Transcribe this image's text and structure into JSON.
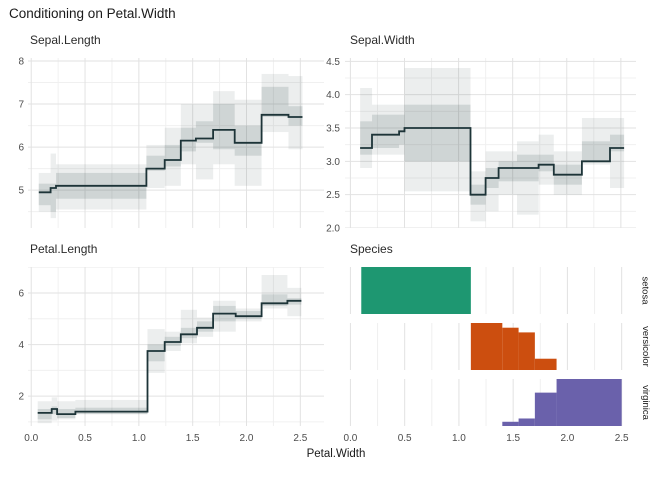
{
  "title": "Conditioning on Petal.Width",
  "x_axis": {
    "title": "Petal.Width",
    "major_ticks": [
      0,
      0.5,
      1.0,
      1.5,
      2.0,
      2.5
    ],
    "tick_labels": [
      "0.0",
      "0.5",
      "1.0",
      "1.5",
      "2.0",
      "2.5"
    ],
    "minor_ticks": [
      0.25,
      0.75,
      1.25,
      1.75,
      2.25
    ]
  },
  "colors": {
    "background": "#ffffff",
    "step_line": "#1d3438",
    "band_fill": "#40585a",
    "grid_major": "#e2e2e2",
    "grid_minor": "#f0f0f0",
    "tick_text": "#4d4d4d",
    "setosa": "#1e9771",
    "versicolor": "#cc4e0f",
    "virginica": "#6a61ab"
  },
  "chart_data": [
    {
      "type": "line",
      "line_shape": "step",
      "title": "Sepal.Length",
      "x_key": "Petal.Width",
      "y_ticks": [
        5,
        6,
        7,
        8
      ],
      "y_tick_labels": [
        "5",
        "6",
        "7",
        "8"
      ],
      "y_minor": [
        4.5,
        5.5,
        6.5,
        7.5
      ],
      "y_domain": [
        4.12,
        8.07
      ],
      "steps": [
        {
          "x0": 0.07,
          "x1": 0.18,
          "y": 4.95,
          "outer": [
            4.5,
            5.4
          ],
          "inner": [
            4.65,
            5.15
          ]
        },
        {
          "x0": 0.18,
          "x1": 0.23,
          "y": 5.05,
          "outer": [
            4.35,
            5.85
          ],
          "inner": [
            4.5,
            5.15
          ]
        },
        {
          "x0": 0.23,
          "x1": 1.07,
          "y": 5.1,
          "outer": [
            4.55,
            5.6
          ],
          "inner": [
            4.8,
            5.4
          ]
        },
        {
          "x0": 1.07,
          "x1": 1.24,
          "y": 5.5,
          "outer": [
            5.05,
            6.05
          ],
          "inner": [
            5.45,
            5.8
          ]
        },
        {
          "x0": 1.24,
          "x1": 1.39,
          "y": 5.7,
          "outer": [
            5.1,
            6.45
          ],
          "inner": [
            5.55,
            6.05
          ]
        },
        {
          "x0": 1.39,
          "x1": 1.53,
          "y": 6.15,
          "outer": [
            5.6,
            7.0
          ],
          "inner": [
            5.9,
            6.45
          ]
        },
        {
          "x0": 1.53,
          "x1": 1.69,
          "y": 6.2,
          "outer": [
            5.25,
            7.0
          ],
          "inner": [
            6.1,
            6.6
          ]
        },
        {
          "x0": 1.69,
          "x1": 1.89,
          "y": 6.4,
          "outer": [
            5.6,
            7.3
          ],
          "inner": [
            5.95,
            7.0
          ]
        },
        {
          "x0": 1.89,
          "x1": 2.14,
          "y": 6.1,
          "outer": [
            5.1,
            7.1
          ],
          "inner": [
            5.8,
            6.5
          ]
        },
        {
          "x0": 2.14,
          "x1": 2.39,
          "y": 6.75,
          "outer": [
            6.35,
            7.7
          ],
          "inner": [
            6.7,
            7.4
          ]
        },
        {
          "x0": 2.39,
          "x1": 2.52,
          "y": 6.7,
          "outer": [
            5.95,
            7.65
          ],
          "inner": [
            6.5,
            6.95
          ]
        }
      ]
    },
    {
      "type": "line",
      "line_shape": "step",
      "title": "Sepal.Width",
      "x_key": "Petal.Width",
      "y_ticks": [
        2.0,
        2.5,
        3.0,
        3.5,
        4.0,
        4.5
      ],
      "y_tick_labels": [
        "2.0",
        "2.5",
        "3.0",
        "3.5",
        "4.0",
        "4.5"
      ],
      "y_minor": [
        2.25,
        2.75,
        3.25,
        3.75,
        4.25
      ],
      "y_domain": [
        2.0,
        4.55
      ],
      "steps": [
        {
          "x0": 0.09,
          "x1": 0.2,
          "y": 3.2,
          "outer": [
            2.9,
            4.1
          ],
          "inner": [
            3.1,
            3.6
          ]
        },
        {
          "x0": 0.2,
          "x1": 0.45,
          "y": 3.4,
          "outer": [
            3.1,
            3.85
          ],
          "inner": [
            3.2,
            3.7
          ]
        },
        {
          "x0": 0.45,
          "x1": 0.5,
          "y": 3.45,
          "outer": [
            3.1,
            3.85
          ],
          "inner": [
            3.25,
            3.7
          ]
        },
        {
          "x0": 0.5,
          "x1": 1.11,
          "y": 3.5,
          "outer": [
            2.55,
            4.4
          ],
          "inner": [
            3.0,
            3.85
          ]
        },
        {
          "x0": 1.11,
          "x1": 1.25,
          "y": 2.5,
          "outer": [
            2.1,
            2.85
          ],
          "inner": [
            2.35,
            2.65
          ]
        },
        {
          "x0": 1.25,
          "x1": 1.37,
          "y": 2.75,
          "outer": [
            2.25,
            3.15
          ],
          "inner": [
            2.6,
            2.9
          ]
        },
        {
          "x0": 1.37,
          "x1": 1.54,
          "y": 2.9,
          "outer": [
            2.5,
            3.15
          ],
          "inner": [
            2.7,
            3.0
          ]
        },
        {
          "x0": 1.54,
          "x1": 1.74,
          "y": 2.9,
          "outer": [
            2.2,
            3.3
          ],
          "inner": [
            2.7,
            3.1
          ]
        },
        {
          "x0": 1.74,
          "x1": 1.88,
          "y": 2.95,
          "outer": [
            2.65,
            3.4
          ],
          "inner": [
            2.85,
            3.1
          ]
        },
        {
          "x0": 1.88,
          "x1": 2.14,
          "y": 2.8,
          "outer": [
            2.5,
            3.15
          ],
          "inner": [
            2.65,
            2.95
          ]
        },
        {
          "x0": 2.14,
          "x1": 2.4,
          "y": 3.0,
          "outer": [
            2.95,
            3.65
          ],
          "inner": [
            3.0,
            3.3
          ]
        },
        {
          "x0": 2.4,
          "x1": 2.53,
          "y": 3.2,
          "outer": [
            2.6,
            3.65
          ],
          "inner": [
            3.15,
            3.4
          ]
        }
      ]
    },
    {
      "type": "line",
      "line_shape": "step",
      "title": "Petal.Length",
      "x_key": "Petal.Width",
      "y_ticks": [
        2,
        4,
        6
      ],
      "y_tick_labels": [
        "2",
        "4",
        "6"
      ],
      "y_minor": [
        1,
        3,
        5,
        7
      ],
      "y_domain": [
        0.84,
        7.01
      ],
      "steps": [
        {
          "x0": 0.06,
          "x1": 0.19,
          "y": 1.35,
          "outer": [
            0.95,
            1.8
          ],
          "inner": [
            1.1,
            1.5
          ]
        },
        {
          "x0": 0.19,
          "x1": 0.24,
          "y": 1.5,
          "outer": [
            1.05,
            1.95
          ],
          "inner": [
            1.3,
            1.6
          ]
        },
        {
          "x0": 0.24,
          "x1": 0.41,
          "y": 1.3,
          "outer": [
            1.1,
            1.8
          ],
          "inner": [
            1.15,
            1.5
          ]
        },
        {
          "x0": 0.41,
          "x1": 1.08,
          "y": 1.4,
          "outer": [
            1.3,
            1.85
          ],
          "inner": [
            1.3,
            1.55
          ]
        },
        {
          "x0": 1.08,
          "x1": 1.24,
          "y": 3.75,
          "outer": [
            2.9,
            4.6
          ],
          "inner": [
            3.35,
            4.0
          ]
        },
        {
          "x0": 1.24,
          "x1": 1.39,
          "y": 4.1,
          "outer": [
            3.75,
            4.5
          ],
          "inner": [
            3.95,
            4.3
          ]
        },
        {
          "x0": 1.39,
          "x1": 1.54,
          "y": 4.4,
          "outer": [
            4.05,
            5.35
          ],
          "inner": [
            4.25,
            4.65
          ]
        },
        {
          "x0": 1.54,
          "x1": 1.69,
          "y": 4.65,
          "outer": [
            4.3,
            5.05
          ],
          "inner": [
            4.5,
            4.9
          ]
        },
        {
          "x0": 1.69,
          "x1": 1.9,
          "y": 5.2,
          "outer": [
            4.5,
            5.7
          ],
          "inner": [
            4.9,
            5.5
          ]
        },
        {
          "x0": 1.9,
          "x1": 2.14,
          "y": 5.1,
          "outer": [
            4.9,
            5.4
          ],
          "inner": [
            5.0,
            5.3
          ]
        },
        {
          "x0": 2.14,
          "x1": 2.38,
          "y": 5.6,
          "outer": [
            5.4,
            6.7
          ],
          "inner": [
            5.5,
            5.95
          ]
        },
        {
          "x0": 2.38,
          "x1": 2.51,
          "y": 5.7,
          "outer": [
            5.1,
            6.2
          ],
          "inner": [
            5.55,
            5.8
          ]
        }
      ]
    },
    {
      "type": "bar",
      "bar_style": "histogram-facets",
      "title": "Species",
      "x_key": "Petal.Width",
      "facets": [
        {
          "name": "setosa",
          "color_key": "setosa",
          "bars": [
            {
              "x0": 0.1,
              "x1": 1.11,
              "h_frac": 1.0
            }
          ]
        },
        {
          "name": "versicolor",
          "color_key": "versicolor",
          "bars": [
            {
              "x0": 1.11,
              "x1": 1.4,
              "h_frac": 1.0
            },
            {
              "x0": 1.4,
              "x1": 1.55,
              "h_frac": 0.9
            },
            {
              "x0": 1.55,
              "x1": 1.7,
              "h_frac": 0.8
            },
            {
              "x0": 1.7,
              "x1": 1.9,
              "h_frac": 0.24
            }
          ]
        },
        {
          "name": "virginica",
          "color_key": "virginica",
          "bars": [
            {
              "x0": 1.4,
              "x1": 1.55,
              "h_frac": 0.09
            },
            {
              "x0": 1.55,
              "x1": 1.7,
              "h_frac": 0.16
            },
            {
              "x0": 1.7,
              "x1": 1.9,
              "h_frac": 0.71
            },
            {
              "x0": 1.9,
              "x1": 2.5,
              "h_frac": 1.0
            }
          ]
        }
      ]
    }
  ]
}
